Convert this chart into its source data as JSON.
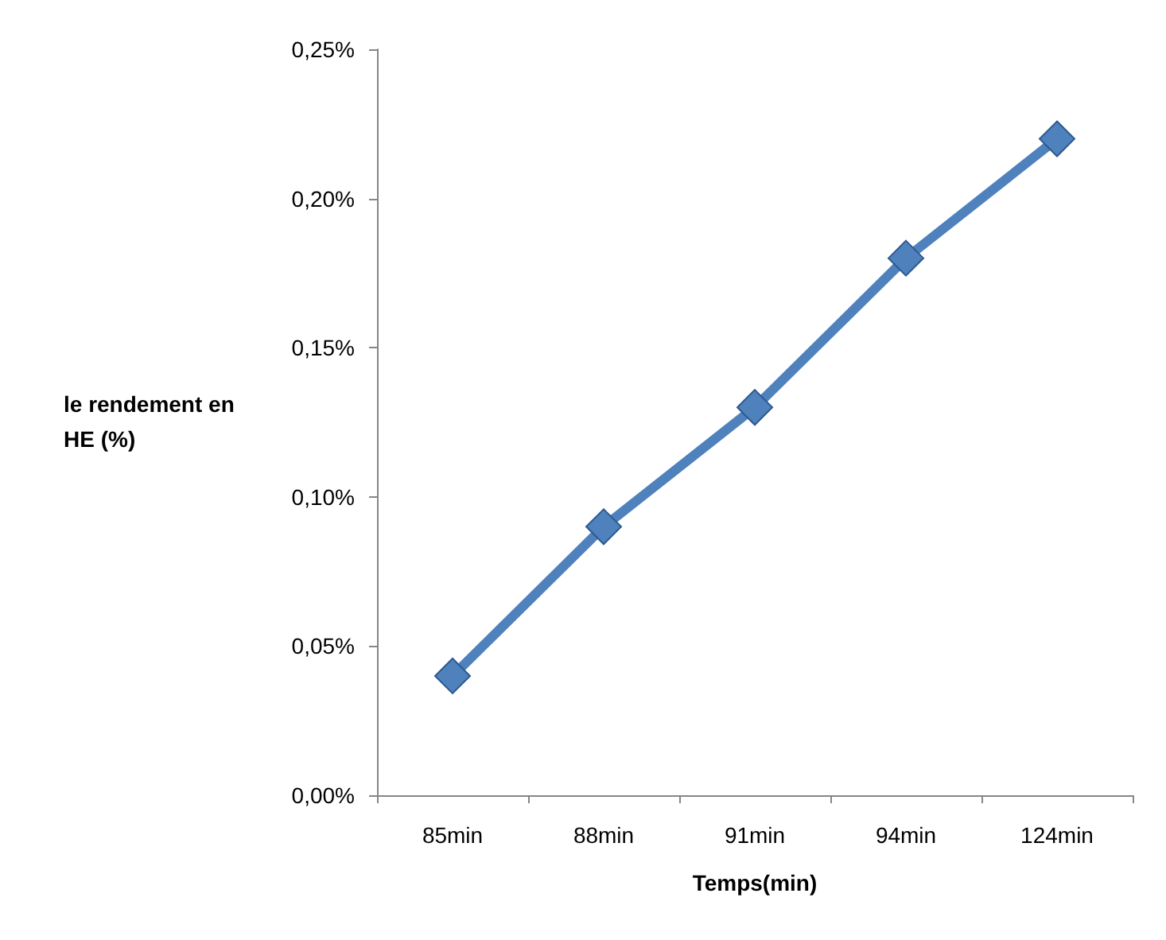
{
  "chart_data": {
    "type": "line",
    "xlabel": "Temps(min)",
    "ylabel": "le rendement en HE (%)",
    "categories": [
      "85min",
      "88min",
      "91min",
      "94min",
      "124min"
    ],
    "series": [
      {
        "color": "#4f81bd",
        "values": [
          0.04,
          0.09,
          0.13,
          0.18,
          0.22
        ]
      }
    ],
    "ylim": [
      0,
      0.25
    ],
    "yticks": [
      {
        "value": 0,
        "label": "0,00%"
      },
      {
        "value": 0.05,
        "label": "0,05%"
      },
      {
        "value": 0.1,
        "label": "0,10%"
      },
      {
        "value": 0.15,
        "label": "0,15%"
      },
      {
        "value": 0.2,
        "label": "0,20%"
      },
      {
        "value": 0.25,
        "label": "0,25%"
      }
    ],
    "grid": false,
    "marker": "diamond",
    "line_style": "solid"
  }
}
